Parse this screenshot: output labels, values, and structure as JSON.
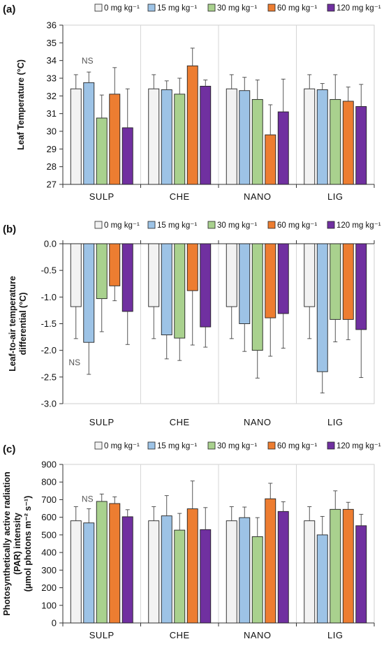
{
  "legend": {
    "items": [
      "0 mg kg⁻¹",
      "15 mg  kg⁻¹",
      "30 mg kg⁻¹",
      "60 mg kg⁻¹",
      "120 mg kg⁻¹"
    ],
    "colors": [
      "#f2f2f2",
      "#9dc3e6",
      "#a9d18e",
      "#ed7d31",
      "#7030a0"
    ]
  },
  "chart_data": [
    {
      "panel": "(a)",
      "type": "bar",
      "ylabel": "Leaf Temperature (°C)",
      "categories": [
        "SULP",
        "CHE",
        "NANO",
        "LIG"
      ],
      "ylim": [
        27,
        36
      ],
      "yticks": [
        "27",
        "28",
        "29",
        "30",
        "31",
        "32",
        "33",
        "34",
        "35",
        "36"
      ],
      "note": "NS",
      "series": [
        {
          "name": "0 mg kg⁻¹",
          "values": [
            32.4,
            32.4,
            32.4,
            32.4
          ],
          "errors": [
            0.8,
            0.8,
            0.8,
            0.8
          ]
        },
        {
          "name": "15 mg  kg⁻¹",
          "values": [
            32.75,
            32.35,
            32.3,
            32.35
          ],
          "errors": [
            0.6,
            0.5,
            0.75,
            0.35
          ]
        },
        {
          "name": "30 mg kg⁻¹",
          "values": [
            30.75,
            32.1,
            31.8,
            31.8
          ],
          "errors": [
            1.3,
            0.9,
            1.1,
            1.4
          ]
        },
        {
          "name": "60 mg kg⁻¹",
          "values": [
            32.1,
            33.7,
            29.8,
            31.7
          ],
          "errors": [
            1.5,
            1.0,
            1.7,
            0.8
          ]
        },
        {
          "name": "120 mg kg⁻¹",
          "values": [
            30.2,
            32.55,
            31.1,
            31.4
          ],
          "errors": [
            2.2,
            0.35,
            1.85,
            1.25
          ]
        }
      ]
    },
    {
      "panel": "(b)",
      "type": "bar",
      "ylabel": "Leaf-to-air temperature differential (°C)",
      "categories": [
        "SULP",
        "CHE",
        "NANO",
        "LIG"
      ],
      "ylim": [
        -3.0,
        0.0
      ],
      "yticks": [
        "-3.0",
        "-2.5",
        "-2.0",
        "-1.5",
        "-1.0",
        "-0.5",
        "0.0"
      ],
      "note": "NS",
      "series": [
        {
          "name": "0 mg kg⁻¹",
          "values": [
            -1.18,
            -1.18,
            -1.18,
            -1.18
          ],
          "errors": [
            0.6,
            0.6,
            0.6,
            0.6
          ]
        },
        {
          "name": "15 mg  kg⁻¹",
          "values": [
            -1.85,
            -1.71,
            -1.5,
            -2.4
          ],
          "errors": [
            0.6,
            0.45,
            0.52,
            0.4
          ]
        },
        {
          "name": "30 mg kg⁻¹",
          "values": [
            -1.03,
            -1.77,
            -2.0,
            -1.42
          ],
          "errors": [
            0.62,
            0.42,
            0.52,
            0.42
          ]
        },
        {
          "name": "60 mg kg⁻¹",
          "values": [
            -0.79,
            -0.88,
            -1.39,
            -1.42
          ],
          "errors": [
            0.28,
            1.02,
            0.72,
            0.38
          ]
        },
        {
          "name": "120 mg kg⁻¹",
          "values": [
            -1.27,
            -1.56,
            -1.31,
            -1.61
          ],
          "errors": [
            0.62,
            0.38,
            0.65,
            0.9
          ]
        }
      ]
    },
    {
      "panel": "(c)",
      "type": "bar",
      "ylabel": "Photosynthetically active radiation (PAR) intensity (μmol photons m⁻² s⁻¹)",
      "categories": [
        "SULP",
        "CHE",
        "NANO",
        "LIG"
      ],
      "ylim": [
        0,
        900
      ],
      "yticks": [
        "0",
        "100",
        "200",
        "300",
        "400",
        "500",
        "600",
        "700",
        "800",
        "900"
      ],
      "note": "NS",
      "series": [
        {
          "name": "0 mg kg⁻¹",
          "values": [
            580,
            580,
            580,
            580
          ],
          "errors": [
            80,
            80,
            80,
            80
          ]
        },
        {
          "name": "15 mg  kg⁻¹",
          "values": [
            568,
            608,
            598,
            500
          ],
          "errors": [
            80,
            115,
            60,
            105
          ]
        },
        {
          "name": "30 mg kg⁻¹",
          "values": [
            690,
            527,
            490,
            645
          ],
          "errors": [
            42,
            95,
            108,
            105
          ]
        },
        {
          "name": "60 mg kg⁻¹",
          "values": [
            678,
            648,
            705,
            645
          ],
          "errors": [
            38,
            158,
            88,
            40
          ]
        },
        {
          "name": "120 mg kg⁻¹",
          "values": [
            603,
            530,
            633,
            552
          ],
          "errors": [
            40,
            125,
            55,
            65
          ]
        }
      ]
    }
  ]
}
